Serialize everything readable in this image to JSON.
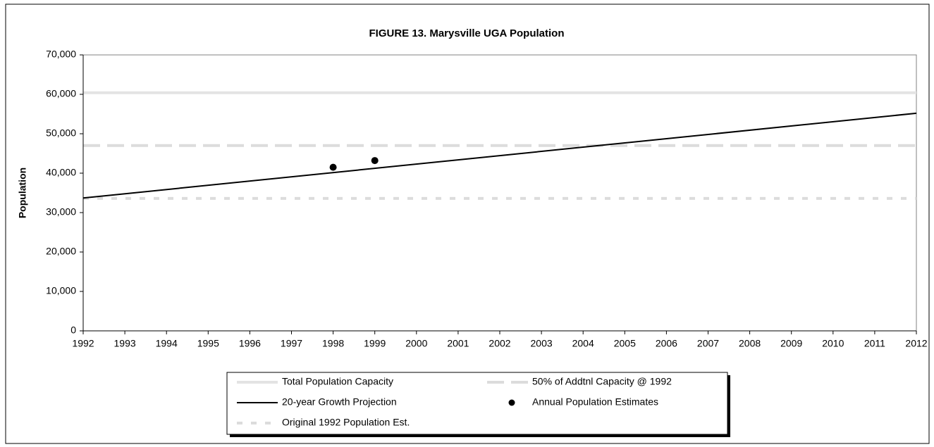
{
  "chart_data": {
    "type": "line",
    "title": "FIGURE 13. Marysville UGA Population",
    "y_label": "Population",
    "xlim": [
      1992,
      2012
    ],
    "xticks": [
      1992,
      1993,
      1994,
      1995,
      1996,
      1997,
      1998,
      1999,
      2000,
      2001,
      2002,
      2003,
      2004,
      2005,
      2006,
      2007,
      2008,
      2009,
      2010,
      2011,
      2012
    ],
    "ylim": [
      0,
      70000
    ],
    "yticks": [
      0,
      {
        "value": 10000,
        "label": "10,000"
      },
      {
        "value": 20000,
        "label": "20,000"
      },
      {
        "value": 30000,
        "label": "30,000"
      },
      {
        "value": 40000,
        "label": "40,000"
      },
      {
        "value": 50000,
        "label": "50,000"
      },
      {
        "value": 60000,
        "label": "60,000"
      },
      {
        "value": 70000,
        "label": "70,000"
      }
    ],
    "series": [
      {
        "name": "Total Population Capacity",
        "color": "#e3e3e3",
        "style": "solid",
        "x": [
          1992,
          2012
        ],
        "values": [
          60400,
          60400
        ]
      },
      {
        "name": "50% of Addtnl Capacity @ 1992",
        "color": "#dcdcdc",
        "style": "dashed",
        "x": [
          1992,
          2012
        ],
        "values": [
          47000,
          47000
        ]
      },
      {
        "name": "20-year Growth Projection",
        "color": "#000000",
        "style": "thin",
        "x": [
          1992,
          2012
        ],
        "values": [
          33700,
          55200
        ]
      },
      {
        "name": "Annual Population Estimates",
        "color": "#000000",
        "style": "marker",
        "x": [
          1998,
          1999
        ],
        "values": [
          41500,
          43200
        ]
      },
      {
        "name": "Original 1992 Population Est.",
        "color": "#dcdcdc",
        "style": "dotted",
        "x": [
          1992,
          2012
        ],
        "values": [
          33600,
          33600
        ]
      }
    ]
  }
}
